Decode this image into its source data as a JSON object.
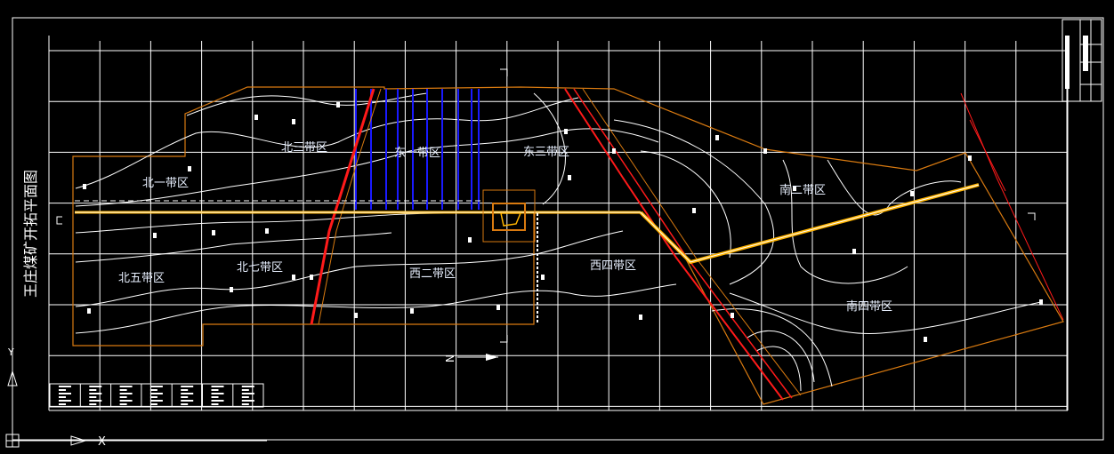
{
  "drawing": {
    "title": "王庄煤矿开拓平面图",
    "north_label": "N",
    "ucs_axes": {
      "y": "Y",
      "x": "X"
    },
    "zones": [
      {
        "label": "北一带区"
      },
      {
        "label": "北三带区"
      },
      {
        "label": "东一带区"
      },
      {
        "label": "东三带区"
      },
      {
        "label": "南二带区"
      },
      {
        "label": "北五带区"
      },
      {
        "label": "北七带区"
      },
      {
        "label": "西二带区"
      },
      {
        "label": "西四带区"
      },
      {
        "label": "南四带区"
      }
    ],
    "colors": {
      "background": "#000000",
      "grid": "#ffffff",
      "boundary": "#d97a10",
      "roadway": "#ffb400",
      "fault": "#ff1a1a",
      "workings": "#1a1aff"
    }
  }
}
